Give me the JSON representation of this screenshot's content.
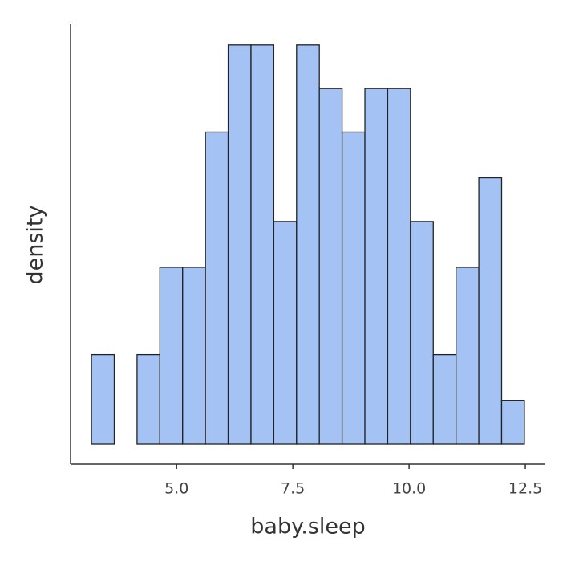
{
  "chart_data": {
    "type": "histogram",
    "x_label": "baby.sleep",
    "y_label": "density",
    "bins": [
      3.17,
      3.66,
      4.15,
      4.64,
      5.13,
      5.62,
      6.11,
      6.6,
      7.09,
      7.58,
      8.07,
      8.56,
      9.05,
      9.54,
      10.03,
      10.52,
      11.01,
      11.5,
      11.99,
      12.48
    ],
    "values": [
      0.041,
      0,
      0.041,
      0.081,
      0.081,
      0.143,
      0.183,
      0.183,
      0.102,
      0.183,
      0.163,
      0.143,
      0.163,
      0.163,
      0.102,
      0.041,
      0.081,
      0.122,
      0.02
    ],
    "color": "#a4c2f4",
    "edge_color": "#222222",
    "xlim": [
      2.72,
      12.93
    ],
    "xticks": [
      {
        "value": 5,
        "label": "5.0"
      },
      7.5,
      {
        "value": 10,
        "label": "10.0"
      },
      12.5
    ],
    "ylim": [
      -0.0092,
      0.1925
    ]
  }
}
